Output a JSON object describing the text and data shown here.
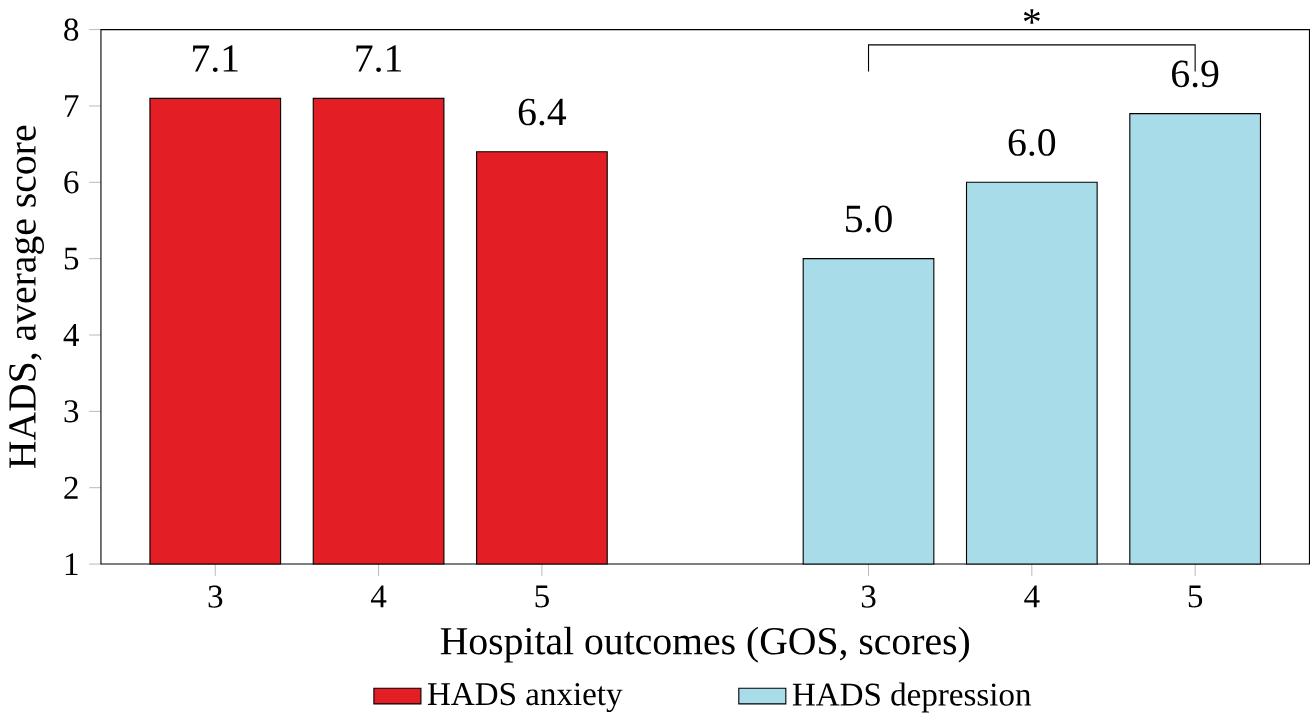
{
  "chart_data": {
    "type": "bar",
    "xlabel": "Hospital outcomes (GOS, scores)",
    "ylabel": "HADS, average score",
    "categories": [
      "3",
      "4",
      "5",
      null,
      "3",
      "4",
      "5"
    ],
    "series": [
      {
        "name": "HADS anxiety",
        "color": "#e31e24",
        "values": [
          7.1,
          7.1,
          6.4,
          null,
          null,
          null,
          null
        ],
        "value_labels": [
          "7.1",
          "7.1",
          "6.4",
          null,
          null,
          null,
          null
        ]
      },
      {
        "name": "HADS depression",
        "color": "#a8dce9",
        "values": [
          null,
          null,
          null,
          null,
          5.0,
          6.0,
          6.9
        ],
        "value_labels": [
          null,
          null,
          null,
          null,
          "5.0",
          "6.0",
          "6.9"
        ]
      }
    ],
    "ylim": [
      1,
      8
    ],
    "yticks": [
      1,
      2,
      3,
      4,
      5,
      6,
      7,
      8
    ],
    "legend": "bottom",
    "grid": false,
    "annotations": [
      "*"
    ]
  }
}
